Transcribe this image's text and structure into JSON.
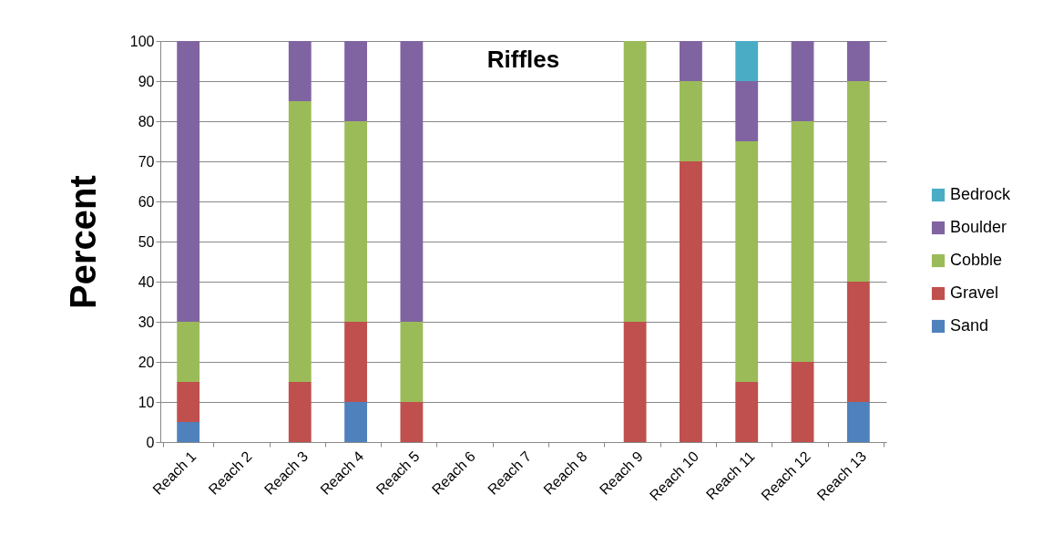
{
  "chart_data": {
    "type": "bar",
    "title": "Riffles",
    "ylabel": "Percent",
    "stacked": true,
    "categories": [
      "Reach 1",
      "Reach 2",
      "Reach 3",
      "Reach 4",
      "Reach 5",
      "Reach 6",
      "Reach 7",
      "Reach 8",
      "Reach 9",
      "Reach 10",
      "Reach 11",
      "Reach 12",
      "Reach 13"
    ],
    "series": [
      {
        "name": "Sand",
        "color": "#4f81bd",
        "values": [
          5,
          null,
          null,
          10,
          null,
          null,
          null,
          null,
          null,
          null,
          null,
          null,
          10
        ]
      },
      {
        "name": "Gravel",
        "color": "#c0504d",
        "values": [
          10,
          null,
          15,
          20,
          10,
          null,
          null,
          null,
          30,
          70,
          15,
          20,
          30
        ]
      },
      {
        "name": "Cobble",
        "color": "#9bbb59",
        "values": [
          15,
          null,
          70,
          50,
          20,
          null,
          null,
          null,
          70,
          20,
          60,
          60,
          50
        ]
      },
      {
        "name": "Boulder",
        "color": "#8064a2",
        "values": [
          70,
          null,
          15,
          20,
          70,
          null,
          null,
          null,
          null,
          10,
          15,
          20,
          10
        ]
      },
      {
        "name": "Bedrock",
        "color": "#4bacc6",
        "values": [
          null,
          null,
          null,
          null,
          null,
          null,
          null,
          null,
          null,
          null,
          10,
          null,
          null
        ]
      }
    ],
    "ylim": [
      0,
      100
    ],
    "yticks": [
      0,
      10,
      20,
      30,
      40,
      50,
      60,
      70,
      80,
      90,
      100
    ],
    "grid": "y",
    "legend": "right"
  }
}
